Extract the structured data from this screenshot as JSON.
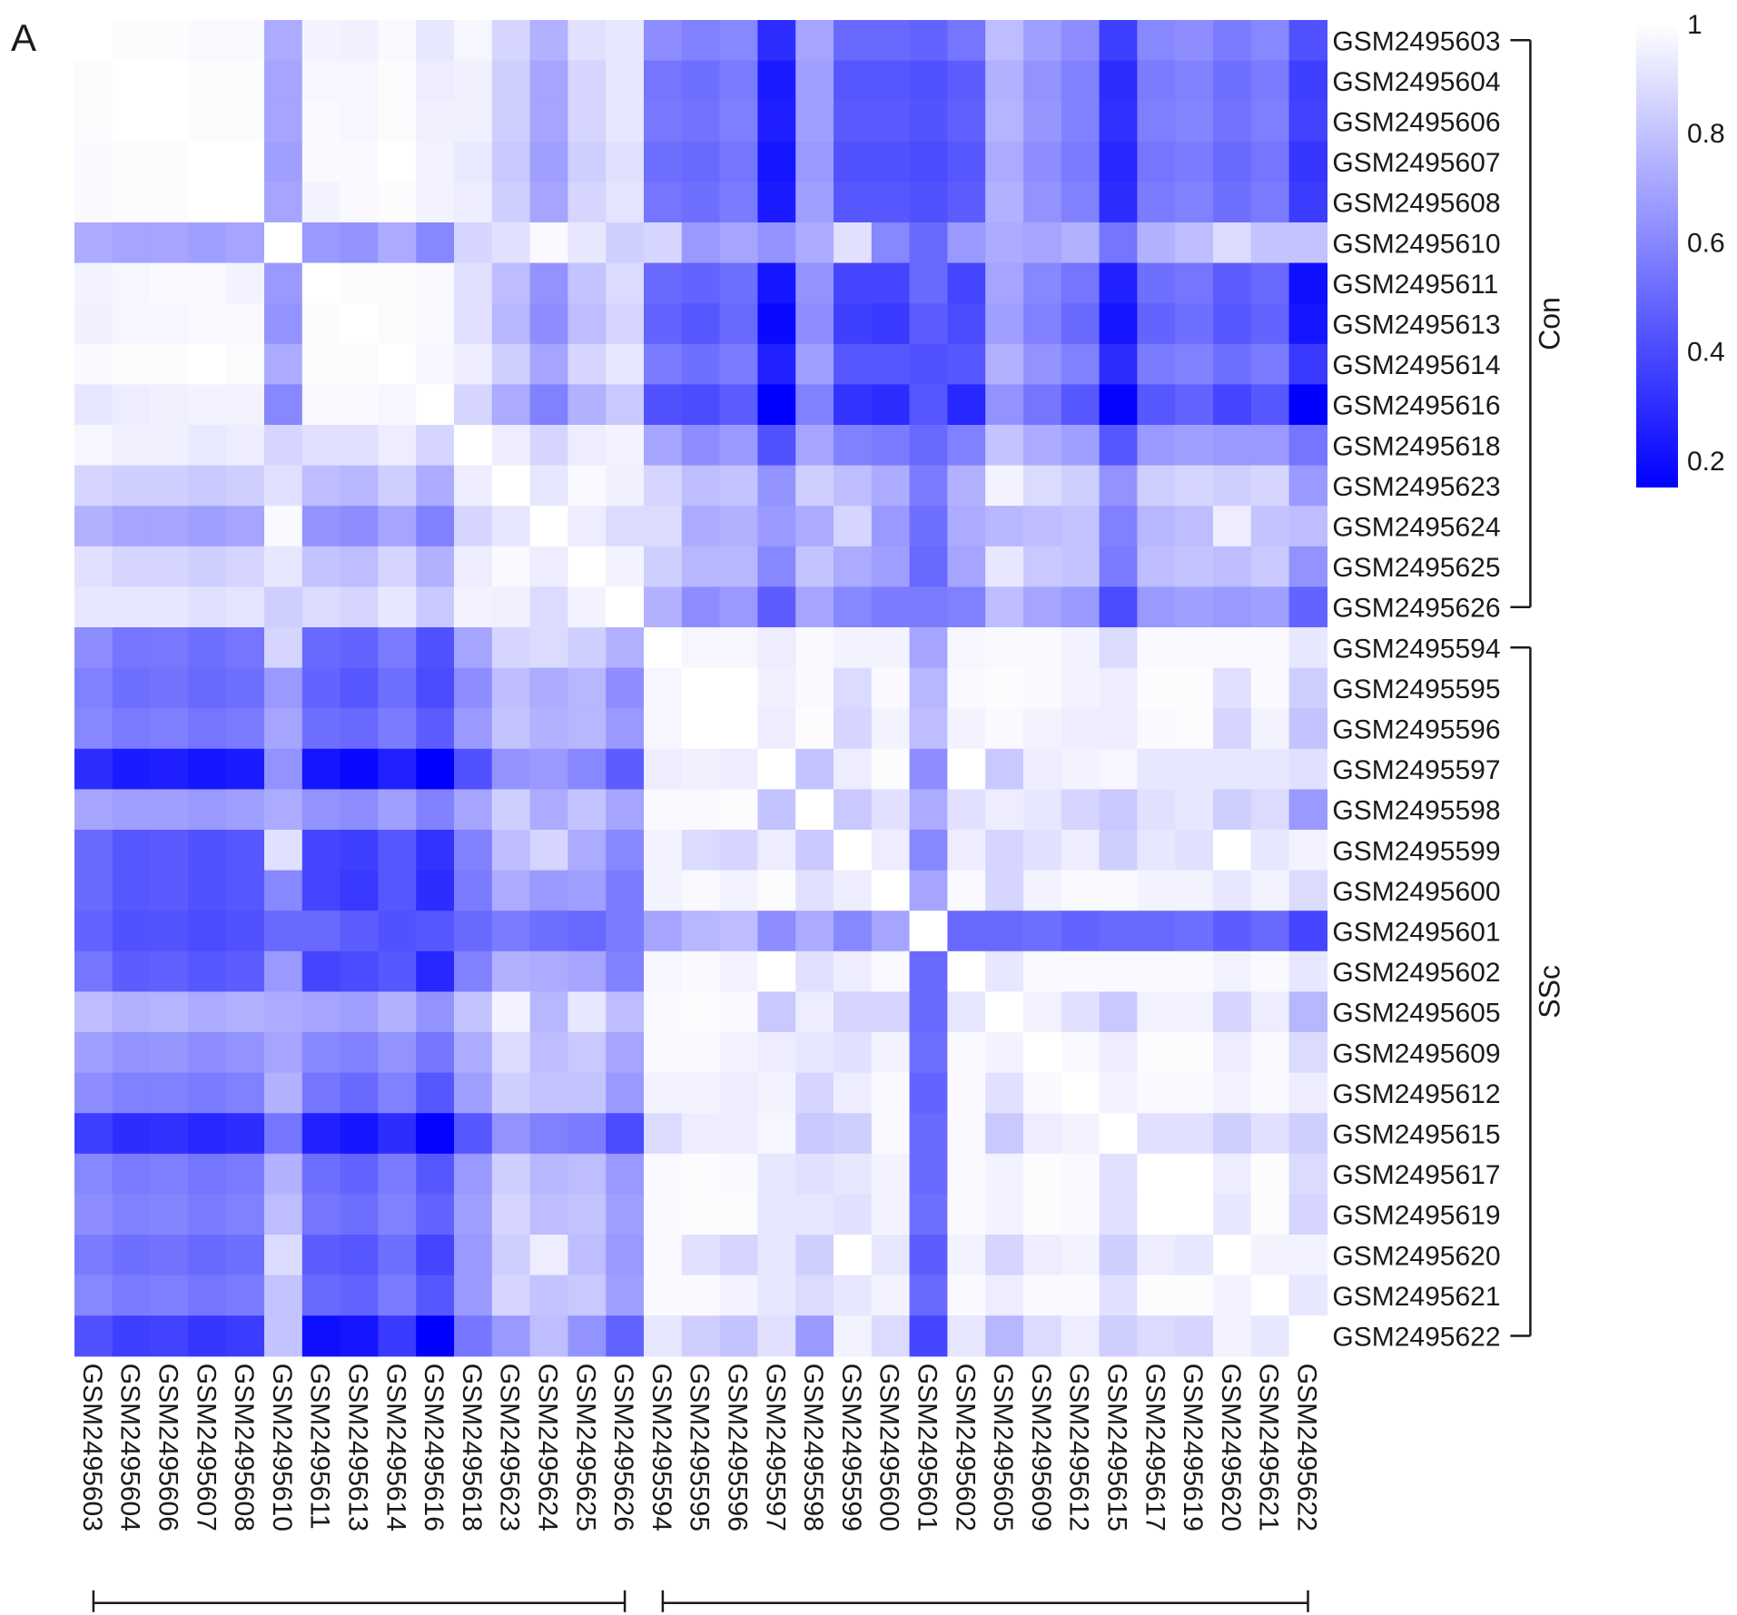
{
  "panel_label": "A",
  "chart_data": {
    "type": "heatmap",
    "title": "",
    "row_labels": [
      "GSM2495603",
      "GSM2495604",
      "GSM2495606",
      "GSM2495607",
      "GSM2495608",
      "GSM2495610",
      "GSM2495611",
      "GSM2495613",
      "GSM2495614",
      "GSM2495616",
      "GSM2495618",
      "GSM2495623",
      "GSM2495624",
      "GSM2495625",
      "GSM2495626",
      "GSM2495594",
      "GSM2495595",
      "GSM2495596",
      "GSM2495597",
      "GSM2495598",
      "GSM2495599",
      "GSM2495600",
      "GSM2495601",
      "GSM2495602",
      "GSM2495605",
      "GSM2495609",
      "GSM2495612",
      "GSM2495615",
      "GSM2495617",
      "GSM2495619",
      "GSM2495620",
      "GSM2495621",
      "GSM2495622"
    ],
    "col_labels": [
      "GSM2495603",
      "GSM2495604",
      "GSM2495606",
      "GSM2495607",
      "GSM2495608",
      "GSM2495610",
      "GSM2495611",
      "GSM2495613",
      "GSM2495614",
      "GSM2495616",
      "GSM2495618",
      "GSM2495623",
      "GSM2495624",
      "GSM2495625",
      "GSM2495626",
      "GSM2495594",
      "GSM2495595",
      "GSM2495596",
      "GSM2495597",
      "GSM2495598",
      "GSM2495599",
      "GSM2495600",
      "GSM2495601",
      "GSM2495602",
      "GSM2495605",
      "GSM2495609",
      "GSM2495612",
      "GSM2495615",
      "GSM2495617",
      "GSM2495619",
      "GSM2495620",
      "GSM2495621",
      "GSM2495622"
    ],
    "groups": [
      {
        "name": "Con",
        "start": 0,
        "end": 14
      },
      {
        "name": "SSc",
        "start": 15,
        "end": 32
      }
    ],
    "colorbar": {
      "min": 0.15,
      "max": 1,
      "ticks": [
        0.2,
        0.4,
        0.6,
        0.8,
        1
      ],
      "tick_labels": [
        "0.2",
        "0.4",
        "0.6",
        "0.8",
        "1"
      ],
      "low_color": "#0000ff",
      "high_color": "#ffffff"
    },
    "values": [
      [
        1.0,
        0.99,
        0.99,
        0.98,
        0.98,
        0.72,
        0.96,
        0.95,
        0.98,
        0.92,
        0.97,
        0.86,
        0.74,
        0.9,
        0.92,
        0.62,
        0.58,
        0.6,
        0.3,
        0.7,
        0.5,
        0.5,
        0.48,
        0.54,
        0.78,
        0.68,
        0.62,
        0.36,
        0.6,
        0.62,
        0.56,
        0.6,
        0.42
      ],
      [
        0.99,
        1.0,
        1.0,
        0.99,
        0.99,
        0.7,
        0.97,
        0.97,
        0.99,
        0.94,
        0.95,
        0.84,
        0.7,
        0.86,
        0.92,
        0.54,
        0.52,
        0.56,
        0.24,
        0.68,
        0.44,
        0.44,
        0.42,
        0.46,
        0.74,
        0.64,
        0.58,
        0.3,
        0.56,
        0.58,
        0.52,
        0.56,
        0.36
      ],
      [
        0.99,
        1.0,
        1.0,
        0.99,
        0.99,
        0.7,
        0.98,
        0.97,
        0.99,
        0.95,
        0.95,
        0.84,
        0.7,
        0.86,
        0.92,
        0.55,
        0.53,
        0.57,
        0.25,
        0.68,
        0.45,
        0.45,
        0.43,
        0.47,
        0.75,
        0.65,
        0.58,
        0.31,
        0.57,
        0.59,
        0.53,
        0.57,
        0.37
      ],
      [
        0.98,
        0.99,
        0.99,
        1.0,
        1.0,
        0.68,
        0.98,
        0.98,
        1.0,
        0.96,
        0.93,
        0.82,
        0.68,
        0.84,
        0.9,
        0.52,
        0.5,
        0.54,
        0.22,
        0.66,
        0.42,
        0.42,
        0.4,
        0.44,
        0.72,
        0.62,
        0.56,
        0.28,
        0.54,
        0.56,
        0.5,
        0.54,
        0.33
      ],
      [
        0.98,
        0.99,
        0.99,
        1.0,
        1.0,
        0.7,
        0.96,
        0.98,
        0.99,
        0.96,
        0.94,
        0.84,
        0.7,
        0.86,
        0.91,
        0.54,
        0.52,
        0.56,
        0.24,
        0.68,
        0.44,
        0.44,
        0.42,
        0.46,
        0.74,
        0.64,
        0.58,
        0.3,
        0.56,
        0.58,
        0.52,
        0.56,
        0.35
      ],
      [
        0.72,
        0.7,
        0.7,
        0.68,
        0.7,
        1.0,
        0.66,
        0.64,
        0.72,
        0.6,
        0.86,
        0.9,
        0.98,
        0.92,
        0.84,
        0.86,
        0.66,
        0.7,
        0.64,
        0.72,
        0.9,
        0.6,
        0.5,
        0.66,
        0.72,
        0.7,
        0.74,
        0.54,
        0.74,
        0.78,
        0.88,
        0.8,
        0.8
      ],
      [
        0.96,
        0.97,
        0.98,
        0.98,
        0.96,
        0.66,
        1.0,
        0.99,
        0.99,
        0.98,
        0.9,
        0.78,
        0.64,
        0.8,
        0.88,
        0.5,
        0.48,
        0.52,
        0.22,
        0.64,
        0.38,
        0.38,
        0.5,
        0.38,
        0.7,
        0.6,
        0.54,
        0.26,
        0.52,
        0.54,
        0.46,
        0.5,
        0.2
      ],
      [
        0.95,
        0.97,
        0.97,
        0.98,
        0.98,
        0.64,
        0.99,
        1.0,
        0.99,
        0.98,
        0.9,
        0.76,
        0.62,
        0.78,
        0.86,
        0.48,
        0.44,
        0.5,
        0.18,
        0.62,
        0.36,
        0.34,
        0.46,
        0.4,
        0.68,
        0.58,
        0.5,
        0.22,
        0.48,
        0.52,
        0.44,
        0.48,
        0.22
      ],
      [
        0.98,
        0.99,
        0.99,
        1.0,
        0.99,
        0.72,
        0.99,
        0.99,
        1.0,
        0.97,
        0.94,
        0.84,
        0.7,
        0.86,
        0.92,
        0.56,
        0.52,
        0.56,
        0.26,
        0.68,
        0.44,
        0.44,
        0.42,
        0.44,
        0.74,
        0.64,
        0.58,
        0.3,
        0.56,
        0.58,
        0.52,
        0.56,
        0.34
      ],
      [
        0.92,
        0.94,
        0.95,
        0.96,
        0.96,
        0.6,
        0.98,
        0.98,
        0.97,
        1.0,
        0.86,
        0.72,
        0.58,
        0.74,
        0.82,
        0.42,
        0.4,
        0.46,
        0.14,
        0.58,
        0.32,
        0.3,
        0.44,
        0.28,
        0.64,
        0.54,
        0.44,
        0.16,
        0.44,
        0.48,
        0.38,
        0.44,
        0.15
      ],
      [
        0.97,
        0.95,
        0.95,
        0.93,
        0.94,
        0.86,
        0.9,
        0.9,
        0.94,
        0.86,
        1.0,
        0.94,
        0.86,
        0.94,
        0.96,
        0.7,
        0.62,
        0.66,
        0.42,
        0.7,
        0.58,
        0.56,
        0.5,
        0.58,
        0.8,
        0.72,
        0.68,
        0.44,
        0.66,
        0.68,
        0.66,
        0.66,
        0.54
      ],
      [
        0.86,
        0.84,
        0.84,
        0.82,
        0.84,
        0.9,
        0.78,
        0.76,
        0.84,
        0.72,
        0.94,
        1.0,
        0.92,
        0.98,
        0.95,
        0.86,
        0.78,
        0.8,
        0.64,
        0.84,
        0.78,
        0.72,
        0.56,
        0.74,
        0.96,
        0.88,
        0.84,
        0.64,
        0.84,
        0.86,
        0.84,
        0.86,
        0.66
      ],
      [
        0.74,
        0.7,
        0.7,
        0.68,
        0.7,
        0.98,
        0.64,
        0.62,
        0.7,
        0.58,
        0.86,
        0.92,
        1.0,
        0.94,
        0.88,
        0.88,
        0.72,
        0.74,
        0.66,
        0.72,
        0.86,
        0.66,
        0.52,
        0.72,
        0.76,
        0.78,
        0.8,
        0.58,
        0.76,
        0.78,
        0.94,
        0.8,
        0.78
      ],
      [
        0.9,
        0.86,
        0.86,
        0.84,
        0.86,
        0.92,
        0.8,
        0.78,
        0.86,
        0.74,
        0.94,
        0.98,
        0.94,
        1.0,
        0.96,
        0.84,
        0.76,
        0.76,
        0.6,
        0.8,
        0.72,
        0.68,
        0.5,
        0.7,
        0.92,
        0.82,
        0.8,
        0.56,
        0.78,
        0.8,
        0.78,
        0.82,
        0.64
      ],
      [
        0.92,
        0.92,
        0.92,
        0.9,
        0.91,
        0.84,
        0.88,
        0.86,
        0.92,
        0.82,
        0.96,
        0.95,
        0.88,
        0.96,
        1.0,
        0.74,
        0.62,
        0.66,
        0.46,
        0.7,
        0.6,
        0.56,
        0.56,
        0.58,
        0.78,
        0.7,
        0.66,
        0.4,
        0.66,
        0.68,
        0.66,
        0.68,
        0.48
      ],
      [
        0.62,
        0.54,
        0.55,
        0.52,
        0.54,
        0.86,
        0.5,
        0.48,
        0.56,
        0.42,
        0.7,
        0.86,
        0.88,
        0.84,
        0.74,
        1.0,
        0.97,
        0.97,
        0.94,
        0.98,
        0.96,
        0.96,
        0.7,
        0.97,
        0.98,
        0.98,
        0.96,
        0.88,
        0.98,
        0.98,
        0.98,
        0.98,
        0.92
      ],
      [
        0.58,
        0.52,
        0.53,
        0.5,
        0.52,
        0.66,
        0.48,
        0.44,
        0.52,
        0.4,
        0.62,
        0.78,
        0.72,
        0.76,
        0.62,
        0.97,
        1.0,
        1.0,
        0.95,
        0.98,
        0.88,
        0.98,
        0.76,
        0.98,
        0.99,
        0.98,
        0.96,
        0.94,
        0.99,
        0.99,
        0.9,
        0.98,
        0.84
      ],
      [
        0.6,
        0.56,
        0.57,
        0.54,
        0.56,
        0.7,
        0.52,
        0.5,
        0.56,
        0.46,
        0.66,
        0.8,
        0.74,
        0.76,
        0.66,
        0.97,
        1.0,
        1.0,
        0.94,
        0.99,
        0.86,
        0.96,
        0.78,
        0.96,
        0.98,
        0.96,
        0.94,
        0.94,
        0.98,
        0.99,
        0.86,
        0.96,
        0.8
      ],
      [
        0.3,
        0.24,
        0.25,
        0.22,
        0.24,
        0.64,
        0.22,
        0.18,
        0.26,
        0.14,
        0.42,
        0.64,
        0.66,
        0.6,
        0.46,
        0.94,
        0.95,
        0.94,
        1.0,
        0.8,
        0.94,
        0.99,
        0.62,
        1.0,
        0.82,
        0.94,
        0.96,
        0.97,
        0.92,
        0.92,
        0.92,
        0.92,
        0.9
      ],
      [
        0.7,
        0.68,
        0.68,
        0.66,
        0.68,
        0.72,
        0.64,
        0.62,
        0.68,
        0.58,
        0.7,
        0.84,
        0.72,
        0.8,
        0.7,
        0.98,
        0.98,
        0.99,
        0.8,
        1.0,
        0.82,
        0.9,
        0.72,
        0.9,
        0.94,
        0.92,
        0.86,
        0.82,
        0.9,
        0.92,
        0.84,
        0.88,
        0.66
      ],
      [
        0.5,
        0.44,
        0.45,
        0.42,
        0.44,
        0.9,
        0.38,
        0.36,
        0.44,
        0.32,
        0.58,
        0.78,
        0.86,
        0.72,
        0.6,
        0.96,
        0.88,
        0.86,
        0.94,
        0.82,
        1.0,
        0.94,
        0.6,
        0.94,
        0.86,
        0.9,
        0.94,
        0.84,
        0.92,
        0.9,
        1.0,
        0.92,
        0.96
      ],
      [
        0.5,
        0.44,
        0.45,
        0.42,
        0.44,
        0.6,
        0.38,
        0.34,
        0.44,
        0.3,
        0.56,
        0.72,
        0.66,
        0.68,
        0.56,
        0.96,
        0.98,
        0.96,
        0.99,
        0.9,
        0.94,
        1.0,
        0.7,
        0.98,
        0.86,
        0.96,
        0.98,
        0.98,
        0.96,
        0.96,
        0.92,
        0.96,
        0.88
      ],
      [
        0.48,
        0.42,
        0.43,
        0.4,
        0.42,
        0.5,
        0.5,
        0.46,
        0.42,
        0.44,
        0.5,
        0.56,
        0.52,
        0.5,
        0.56,
        0.7,
        0.76,
        0.78,
        0.62,
        0.72,
        0.6,
        0.7,
        1.0,
        0.5,
        0.5,
        0.52,
        0.48,
        0.5,
        0.5,
        0.52,
        0.46,
        0.5,
        0.38
      ],
      [
        0.54,
        0.46,
        0.47,
        0.44,
        0.46,
        0.66,
        0.38,
        0.4,
        0.44,
        0.28,
        0.58,
        0.74,
        0.72,
        0.7,
        0.58,
        0.97,
        0.98,
        0.96,
        1.0,
        0.9,
        0.94,
        0.98,
        0.5,
        1.0,
        0.92,
        0.98,
        0.98,
        0.98,
        0.98,
        0.98,
        0.96,
        0.98,
        0.92
      ],
      [
        0.78,
        0.74,
        0.75,
        0.72,
        0.74,
        0.72,
        0.7,
        0.68,
        0.74,
        0.64,
        0.8,
        0.96,
        0.76,
        0.92,
        0.78,
        0.98,
        0.99,
        0.98,
        0.82,
        0.94,
        0.86,
        0.86,
        0.5,
        0.92,
        1.0,
        0.96,
        0.9,
        0.82,
        0.96,
        0.96,
        0.86,
        0.94,
        0.76
      ],
      [
        0.68,
        0.64,
        0.65,
        0.62,
        0.64,
        0.7,
        0.6,
        0.58,
        0.64,
        0.54,
        0.72,
        0.88,
        0.78,
        0.82,
        0.7,
        0.98,
        0.98,
        0.96,
        0.94,
        0.92,
        0.9,
        0.96,
        0.52,
        0.98,
        0.96,
        1.0,
        0.98,
        0.94,
        0.99,
        0.99,
        0.94,
        0.98,
        0.88
      ],
      [
        0.62,
        0.58,
        0.58,
        0.56,
        0.58,
        0.74,
        0.54,
        0.5,
        0.58,
        0.44,
        0.68,
        0.84,
        0.8,
        0.8,
        0.66,
        0.96,
        0.96,
        0.94,
        0.96,
        0.86,
        0.94,
        0.98,
        0.48,
        0.98,
        0.9,
        0.98,
        1.0,
        0.96,
        0.98,
        0.98,
        0.96,
        0.98,
        0.94
      ],
      [
        0.36,
        0.3,
        0.31,
        0.28,
        0.3,
        0.54,
        0.26,
        0.22,
        0.3,
        0.16,
        0.44,
        0.64,
        0.58,
        0.56,
        0.4,
        0.88,
        0.94,
        0.94,
        0.97,
        0.82,
        0.84,
        0.98,
        0.5,
        0.98,
        0.82,
        0.94,
        0.96,
        1.0,
        0.9,
        0.9,
        0.84,
        0.9,
        0.84
      ],
      [
        0.6,
        0.56,
        0.57,
        0.54,
        0.56,
        0.74,
        0.52,
        0.48,
        0.56,
        0.44,
        0.66,
        0.84,
        0.76,
        0.78,
        0.66,
        0.98,
        0.99,
        0.98,
        0.92,
        0.9,
        0.92,
        0.96,
        0.5,
        0.98,
        0.96,
        0.99,
        0.98,
        0.9,
        1.0,
        1.0,
        0.94,
        0.99,
        0.88
      ],
      [
        0.62,
        0.58,
        0.59,
        0.56,
        0.58,
        0.78,
        0.54,
        0.52,
        0.58,
        0.48,
        0.68,
        0.86,
        0.78,
        0.8,
        0.68,
        0.98,
        0.99,
        0.99,
        0.92,
        0.92,
        0.9,
        0.96,
        0.52,
        0.98,
        0.96,
        0.99,
        0.98,
        0.9,
        1.0,
        1.0,
        0.92,
        0.99,
        0.86
      ],
      [
        0.56,
        0.52,
        0.53,
        0.5,
        0.52,
        0.88,
        0.46,
        0.44,
        0.52,
        0.38,
        0.66,
        0.84,
        0.94,
        0.78,
        0.66,
        0.98,
        0.9,
        0.86,
        0.92,
        0.84,
        1.0,
        0.92,
        0.46,
        0.96,
        0.86,
        0.94,
        0.96,
        0.84,
        0.94,
        0.92,
        1.0,
        0.96,
        0.96
      ],
      [
        0.6,
        0.56,
        0.57,
        0.54,
        0.56,
        0.8,
        0.5,
        0.48,
        0.56,
        0.44,
        0.66,
        0.86,
        0.8,
        0.82,
        0.68,
        0.98,
        0.98,
        0.96,
        0.92,
        0.88,
        0.92,
        0.96,
        0.5,
        0.98,
        0.94,
        0.98,
        0.98,
        0.9,
        0.99,
        0.99,
        0.96,
        1.0,
        0.92
      ],
      [
        0.42,
        0.36,
        0.37,
        0.33,
        0.35,
        0.8,
        0.2,
        0.22,
        0.34,
        0.15,
        0.54,
        0.66,
        0.78,
        0.64,
        0.48,
        0.92,
        0.84,
        0.8,
        0.9,
        0.66,
        0.96,
        0.88,
        0.38,
        0.92,
        0.76,
        0.88,
        0.94,
        0.84,
        0.88,
        0.86,
        0.96,
        0.92,
        1.0
      ]
    ]
  }
}
